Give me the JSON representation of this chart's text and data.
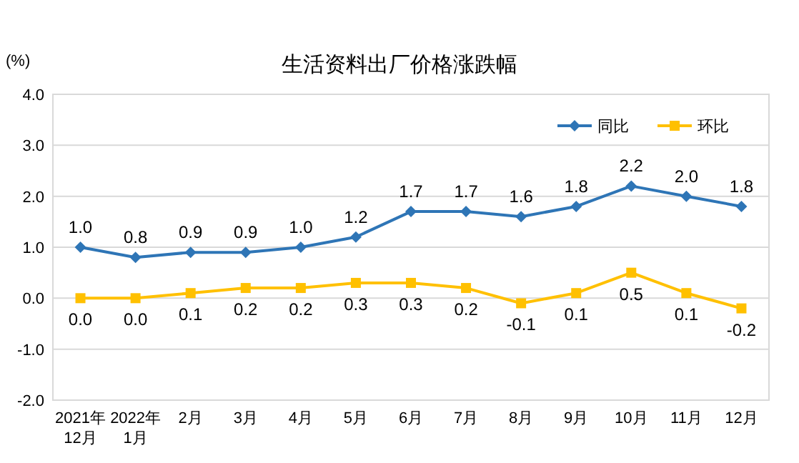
{
  "chart_data": {
    "type": "line",
    "title": "生活资料出厂价格涨跌幅",
    "ylabel": "(%)",
    "categories": [
      "2021年\n12月",
      "2022年\n1月",
      "2月",
      "3月",
      "4月",
      "5月",
      "6月",
      "7月",
      "8月",
      "9月",
      "10月",
      "11月",
      "12月"
    ],
    "series": [
      {
        "name": "同比",
        "color": "#2e75b6",
        "marker": "diamond",
        "values": [
          1.0,
          0.8,
          0.9,
          0.9,
          1.0,
          1.2,
          1.7,
          1.7,
          1.6,
          1.8,
          2.2,
          2.0,
          1.8
        ],
        "value_labels": [
          "1.0",
          "0.8",
          "0.9",
          "0.9",
          "1.0",
          "1.2",
          "1.7",
          "1.7",
          "1.6",
          "1.8",
          "2.2",
          "2.0",
          "1.8"
        ]
      },
      {
        "name": "环比",
        "color": "#ffc000",
        "marker": "square",
        "values": [
          0.0,
          0.0,
          0.1,
          0.2,
          0.2,
          0.3,
          0.3,
          0.2,
          -0.1,
          0.1,
          0.5,
          0.1,
          -0.2
        ],
        "value_labels": [
          "0.0",
          "0.0",
          "0.1",
          "0.2",
          "0.2",
          "0.3",
          "0.3",
          "0.2",
          "-0.1",
          "0.1",
          "0.5",
          "0.1",
          "-0.2"
        ]
      }
    ],
    "ylim": [
      -2,
      4
    ],
    "yticks": [
      {
        "value": -2,
        "label": "-2.0"
      },
      {
        "value": -1,
        "label": "-1.0"
      },
      {
        "value": 0,
        "label": "0.0"
      },
      {
        "value": 1,
        "label": "1.0"
      },
      {
        "value": 2,
        "label": "2.0"
      },
      {
        "value": 3,
        "label": "3.0"
      },
      {
        "value": 4,
        "label": "4.0"
      }
    ],
    "grid": "y",
    "legend": "top right",
    "line_style": "solid"
  }
}
